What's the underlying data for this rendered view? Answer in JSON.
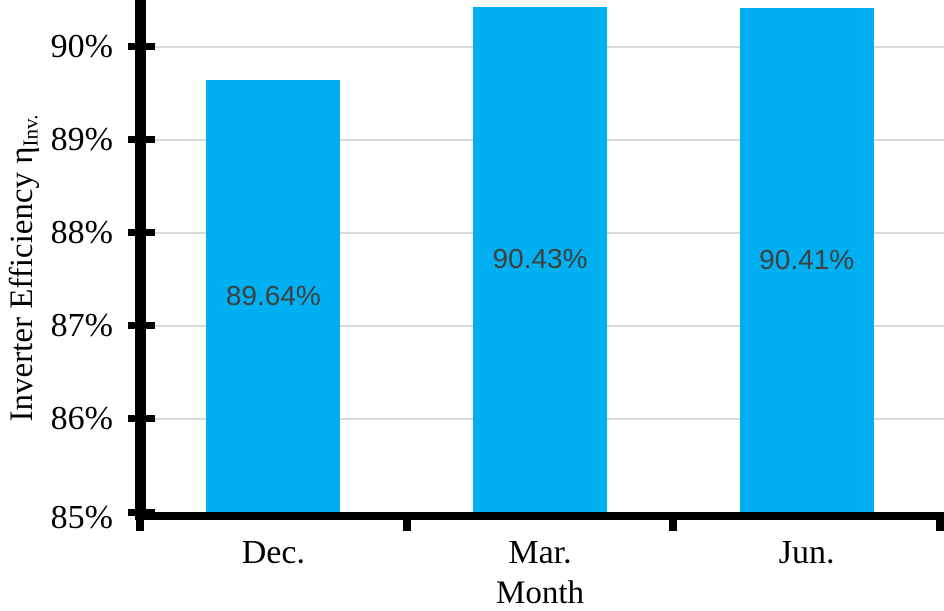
{
  "chart_data": {
    "type": "bar",
    "title": "",
    "categories": [
      "Dec.",
      "Mar.",
      "Jun."
    ],
    "values": [
      89.64,
      90.43,
      90.41
    ],
    "bar_labels": [
      "89.64%",
      "90.43%",
      "90.41%"
    ],
    "xlabel": "Month",
    "ylabel": "Inverter Efficiency ηInv.",
    "ylabel_main": "Inverter Efficiency η",
    "ylabel_sub": "Inv.",
    "ylim": [
      85,
      90.5
    ],
    "yticks": [
      {
        "value": 90,
        "label": "90%"
      },
      {
        "value": 89,
        "label": "89%"
      },
      {
        "value": 88,
        "label": "88%"
      },
      {
        "value": 87,
        "label": "87%"
      },
      {
        "value": 86,
        "label": "86%"
      },
      {
        "value": 85,
        "label": "85%"
      }
    ],
    "grid": "horizontal",
    "legend": "none",
    "colors": {
      "bar": "#00B0F0",
      "bar_label_text": "#404040",
      "gridline": "#D9D9D9",
      "axis": "#000000",
      "text": "#000000",
      "background": "#FFFFFF"
    }
  }
}
